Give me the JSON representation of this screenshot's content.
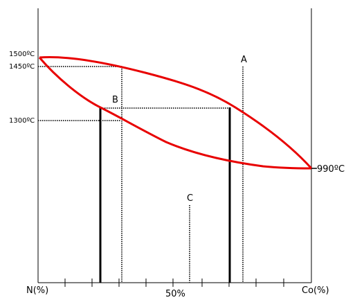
{
  "diagram": {
    "temperatures": {
      "t1500": "1500ºC",
      "t1450": "1450ºC",
      "t1300": "1300ºC",
      "t990": "990ºC"
    },
    "axis": {
      "left": "N(%)",
      "middle": "50%",
      "right": "Co(%)"
    },
    "points": {
      "a": "A",
      "b": "B",
      "c": "C"
    },
    "colors": {
      "curve": "#e80000",
      "lines": "#000000"
    }
  }
}
